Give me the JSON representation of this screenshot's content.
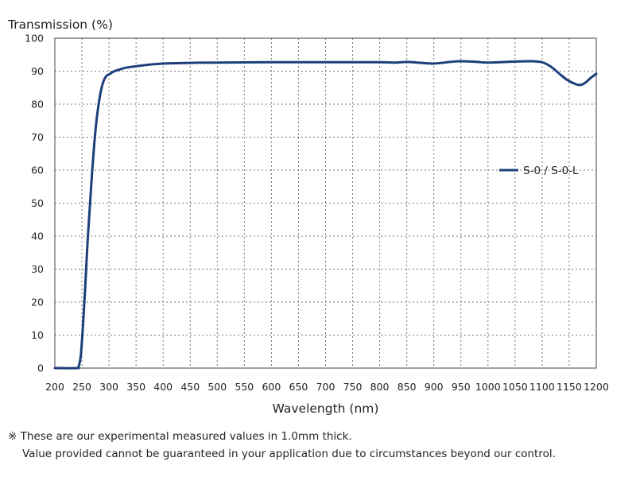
{
  "chart_data": {
    "type": "line",
    "title": "",
    "ylabel": "Transmission (%)",
    "xlabel": "Wavelength (nm)",
    "xlim": [
      200,
      1200
    ],
    "ylim": [
      0,
      100
    ],
    "x_ticks": [
      200,
      250,
      300,
      350,
      400,
      450,
      500,
      550,
      600,
      650,
      700,
      750,
      800,
      850,
      900,
      950,
      1000,
      1050,
      1100,
      1150,
      1200
    ],
    "y_ticks": [
      0,
      10,
      20,
      30,
      40,
      50,
      60,
      70,
      80,
      90,
      100
    ],
    "grid": true,
    "legend_position": "right",
    "series": [
      {
        "name": "S-0 / S-0-L",
        "color": "#1c3f7a",
        "points": [
          [
            200,
            0
          ],
          [
            240,
            0
          ],
          [
            244,
            0.5
          ],
          [
            248,
            4
          ],
          [
            252,
            13
          ],
          [
            256,
            24
          ],
          [
            260,
            37
          ],
          [
            265,
            50
          ],
          [
            270,
            62
          ],
          [
            275,
            72
          ],
          [
            280,
            79
          ],
          [
            285,
            84
          ],
          [
            290,
            87
          ],
          [
            295,
            88.5
          ],
          [
            300,
            89
          ],
          [
            310,
            90
          ],
          [
            320,
            90.5
          ],
          [
            330,
            91
          ],
          [
            350,
            91.5
          ],
          [
            375,
            92
          ],
          [
            400,
            92.3
          ],
          [
            450,
            92.5
          ],
          [
            500,
            92.6
          ],
          [
            600,
            92.7
          ],
          [
            700,
            92.7
          ],
          [
            800,
            92.7
          ],
          [
            830,
            92.6
          ],
          [
            850,
            92.8
          ],
          [
            870,
            92.6
          ],
          [
            900,
            92.3
          ],
          [
            930,
            92.8
          ],
          [
            950,
            93
          ],
          [
            980,
            92.8
          ],
          [
            1000,
            92.6
          ],
          [
            1050,
            92.9
          ],
          [
            1080,
            93
          ],
          [
            1100,
            92.7
          ],
          [
            1115,
            91.5
          ],
          [
            1130,
            89.5
          ],
          [
            1145,
            87.5
          ],
          [
            1160,
            86.2
          ],
          [
            1170,
            85.8
          ],
          [
            1180,
            86.5
          ],
          [
            1190,
            88
          ],
          [
            1200,
            89.2
          ]
        ]
      }
    ]
  },
  "notes": {
    "line1": "※ These are our experimental measured values in 1.0mm thick.",
    "line2": "Value provided cannot be guaranteed in your application due to circumstances beyond our control."
  }
}
